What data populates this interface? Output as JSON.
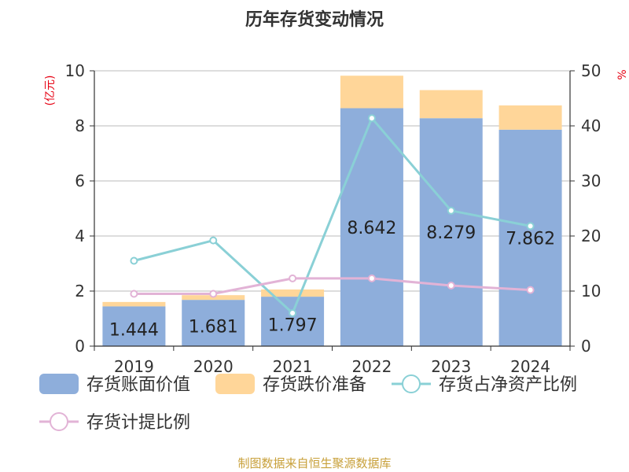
{
  "chart_data": {
    "type": "bar",
    "title": "历年存货变动情况",
    "categories": [
      "2019",
      "2020",
      "2021",
      "2022",
      "2023",
      "2024"
    ],
    "ylabel_left": "(亿元)",
    "ylabel_right": "%",
    "ylim_left": [
      0,
      10
    ],
    "ylim_right": [
      0,
      50
    ],
    "yticks_left": [
      "0",
      "2",
      "4",
      "6",
      "8",
      "10"
    ],
    "yticks_right": [
      "0",
      "10",
      "20",
      "30",
      "40",
      "50"
    ],
    "grid": true,
    "stacked": true,
    "legend_position": "bottom",
    "series": [
      {
        "name": "存货账面价值",
        "kind": "bar",
        "axis": "left",
        "color": "#8eaedb",
        "values": [
          1.444,
          1.681,
          1.797,
          8.642,
          8.279,
          7.862
        ],
        "labels": [
          "1.444",
          "1.681",
          "1.797",
          "8.642",
          "8.279",
          "7.862"
        ]
      },
      {
        "name": "存货跌价准备",
        "kind": "bar",
        "axis": "left",
        "color": "#ffd699",
        "values": [
          0.16,
          0.17,
          0.26,
          1.18,
          1.02,
          0.88
        ]
      },
      {
        "name": "存货占净资产比例",
        "kind": "line",
        "axis": "right",
        "color": "#8ad0d6",
        "values": [
          15.5,
          19.2,
          6.0,
          41.4,
          24.6,
          21.8
        ]
      },
      {
        "name": "存货计提比例",
        "kind": "line",
        "axis": "right",
        "color": "#e2b3d6",
        "values": [
          9.5,
          9.5,
          12.3,
          12.3,
          11.0,
          10.2
        ]
      }
    ]
  },
  "footer": {
    "source": "制图数据来自恒生聚源数据库"
  }
}
